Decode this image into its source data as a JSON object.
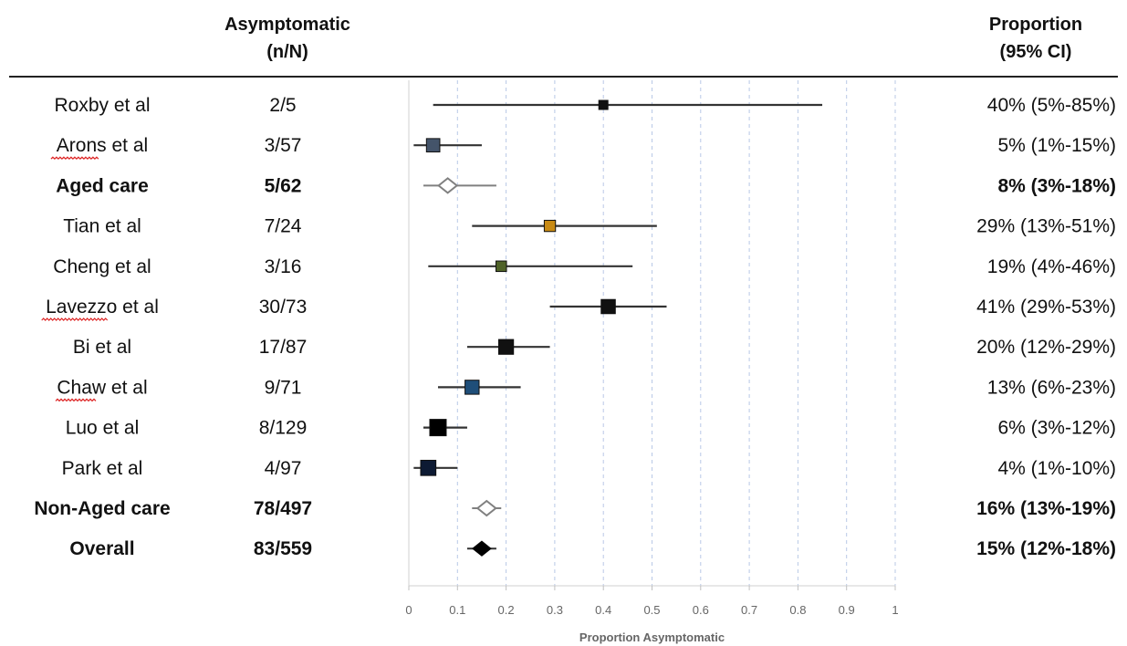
{
  "header": {
    "col_n_line1": "Asymptomatic",
    "col_n_line2": "(n/N)",
    "col_ci_line1": "Proportion",
    "col_ci_line2": "(95% CI)"
  },
  "chart_data": {
    "type": "forest",
    "xlabel": "Proportion Asymptomatic",
    "xlim": [
      0,
      1
    ],
    "xticks": [
      "0",
      "0.1",
      "0.2",
      "0.3",
      "0.4",
      "0.5",
      "0.6",
      "0.7",
      "0.8",
      "0.9",
      "1"
    ],
    "grid": "vertical dashed",
    "rows": [
      {
        "label": "Roxby et al",
        "n": "2/5",
        "ci_text": "40% (5%-85%)",
        "est": 0.4,
        "lo": 0.05,
        "hi": 0.85,
        "marker": "square",
        "marker_color": "#111111",
        "weight": 5,
        "bold": false,
        "underline": false
      },
      {
        "label": "Arons et al",
        "n": "3/57",
        "ci_text": "5% (1%-15%)",
        "est": 0.05,
        "lo": 0.01,
        "hi": 0.15,
        "marker": "square",
        "marker_color": "#44546a",
        "weight": 57,
        "bold": false,
        "underline": true
      },
      {
        "label": "Aged care",
        "n": "5/62",
        "ci_text": "8% (3%-18%)",
        "est": 0.08,
        "lo": 0.03,
        "hi": 0.18,
        "marker": "diamond-open",
        "marker_color": "#808080",
        "weight": 0,
        "bold": true,
        "underline": false
      },
      {
        "label": "Tian et al",
        "n": "7/24",
        "ci_text": "29%  (13%-51%)",
        "est": 0.29,
        "lo": 0.13,
        "hi": 0.51,
        "marker": "square",
        "marker_color": "#c88a14",
        "weight": 24,
        "bold": false,
        "underline": false
      },
      {
        "label": "Cheng et al",
        "n": "3/16",
        "ci_text": "19%  (4%-46%)",
        "est": 0.19,
        "lo": 0.04,
        "hi": 0.46,
        "marker": "square",
        "marker_color": "#4f6228",
        "weight": 16,
        "bold": false,
        "underline": false
      },
      {
        "label": "Lavezzo et al",
        "n": "30/73",
        "ci_text": "41%  (29%-53%)",
        "est": 0.41,
        "lo": 0.29,
        "hi": 0.53,
        "marker": "square",
        "marker_color": "#111111",
        "weight": 73,
        "bold": false,
        "underline": true
      },
      {
        "label": "Bi et al",
        "n": "17/87",
        "ci_text": "20%  (12%-29%)",
        "est": 0.2,
        "lo": 0.12,
        "hi": 0.29,
        "marker": "square",
        "marker_color": "#111111",
        "weight": 87,
        "bold": false,
        "underline": false
      },
      {
        "label": "Chaw et al",
        "n": "9/71",
        "ci_text": "13% (6%-23%)",
        "est": 0.13,
        "lo": 0.06,
        "hi": 0.23,
        "marker": "square",
        "marker_color": "#1f4e79",
        "weight": 71,
        "bold": false,
        "underline": true
      },
      {
        "label": "Luo et al",
        "n": "8/129",
        "ci_text": "6%  (3%-12%)",
        "est": 0.06,
        "lo": 0.03,
        "hi": 0.12,
        "marker": "square",
        "marker_color": "#000000",
        "weight": 129,
        "bold": false,
        "underline": false
      },
      {
        "label": "Park et al",
        "n": "4/97",
        "ci_text": "4%  (1%-10%)",
        "est": 0.04,
        "lo": 0.01,
        "hi": 0.1,
        "marker": "square",
        "marker_color": "#0d1a33",
        "weight": 97,
        "bold": false,
        "underline": false
      },
      {
        "label": "Non-Aged care",
        "n": "78/497",
        "ci_text": "16%  (13%-19%)",
        "est": 0.16,
        "lo": 0.13,
        "hi": 0.19,
        "marker": "diamond-open",
        "marker_color": "#808080",
        "weight": 0,
        "bold": true,
        "underline": false
      },
      {
        "label": "Overall",
        "n": "83/559",
        "ci_text": "15%  (12%-18%)",
        "est": 0.15,
        "lo": 0.12,
        "hi": 0.18,
        "marker": "diamond-filled",
        "marker_color": "#000000",
        "weight": 0,
        "bold": true,
        "underline": false
      }
    ]
  }
}
